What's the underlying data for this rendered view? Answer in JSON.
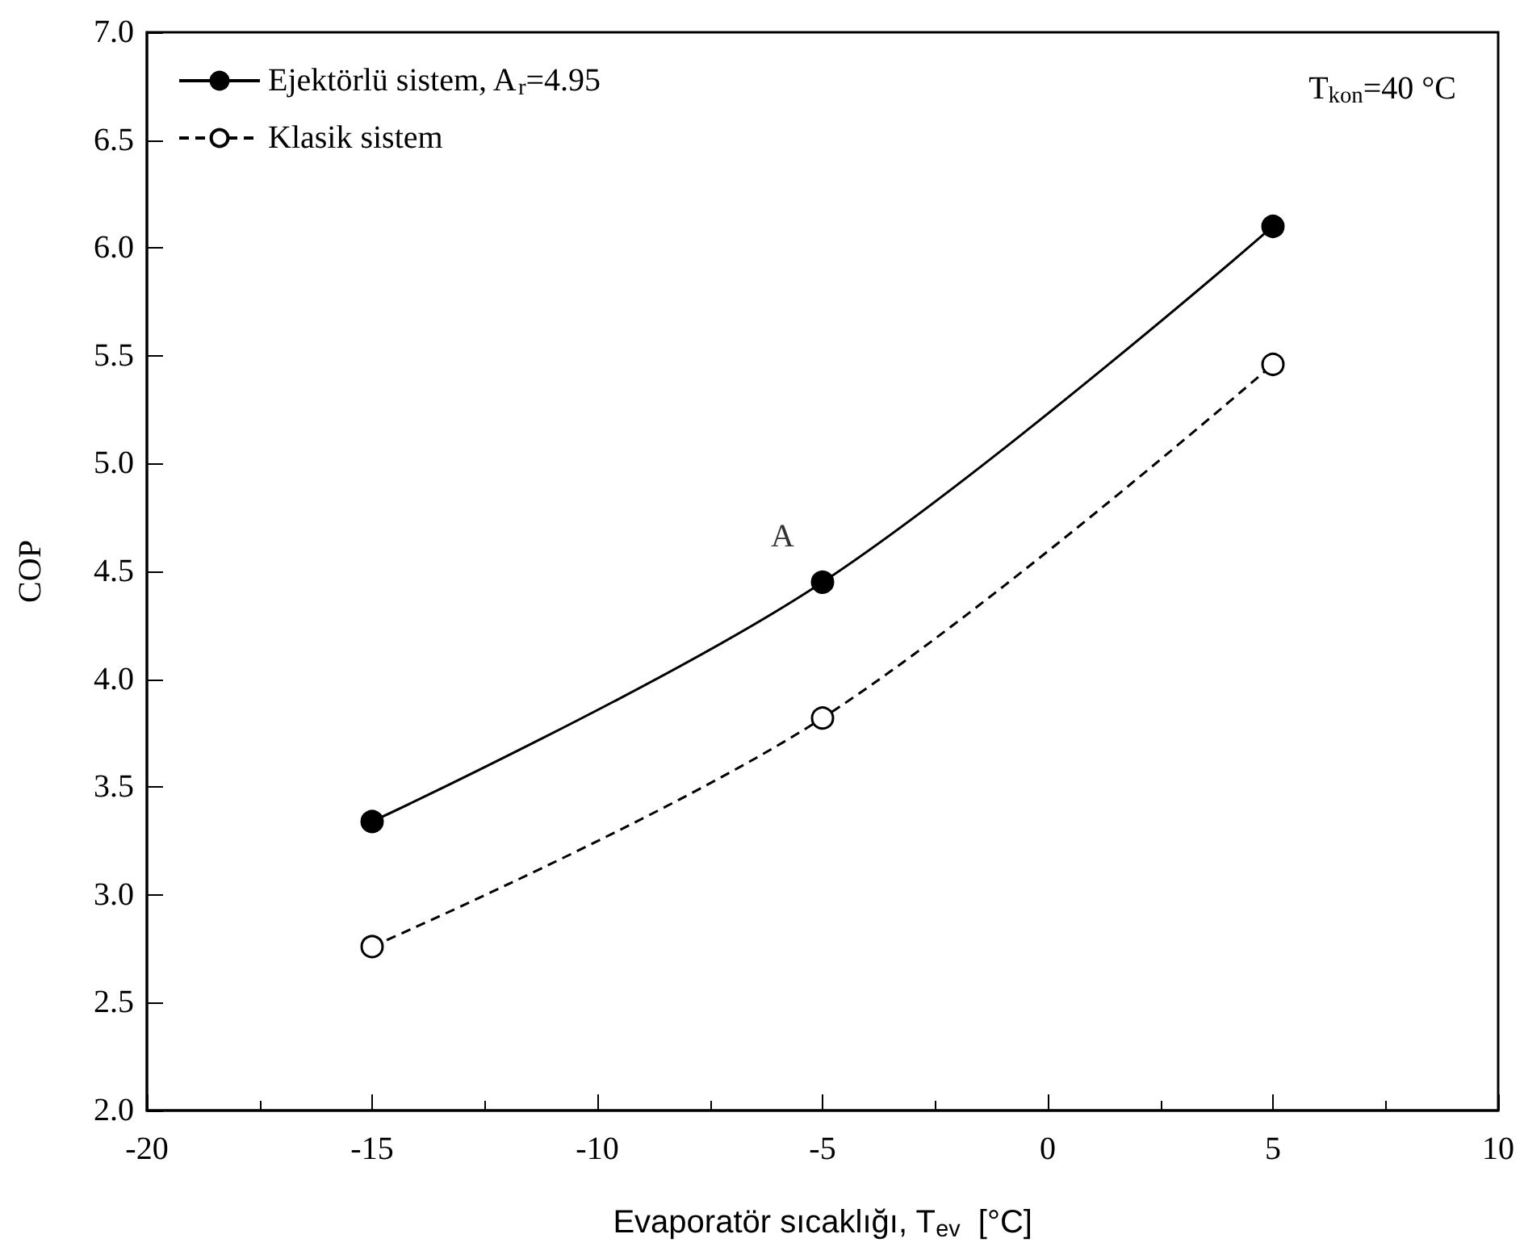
{
  "chart_data": {
    "type": "line",
    "xlabel": "Evaporatör sıcaklığı, T$_{ev}$  [°C]",
    "ylabel": "COP",
    "x": [
      -15,
      -5,
      5
    ],
    "series": [
      {
        "name": "Ejektörlü sistem, A$_{r}$=4.95",
        "color": "#000000",
        "values": [
          3.34,
          4.45,
          6.1
        ],
        "line_style": "solid"
      },
      {
        "name": "Klasik sistem",
        "color": "#000000",
        "values": [
          2.76,
          3.82,
          5.46
        ],
        "line_style": "dashed"
      }
    ],
    "xlim": [
      -20,
      10
    ],
    "xticks": [
      -20,
      -15,
      -10,
      -5,
      0,
      5,
      10
    ],
    "ylim": [
      2.0,
      7.0
    ],
    "yticks": [
      {
        "value": 2,
        "label": "2.0"
      },
      {
        "value": 2.5,
        "label": "2.5"
      },
      {
        "value": 3,
        "label": "3.0"
      },
      {
        "value": 3.5,
        "label": "3.5"
      },
      {
        "value": 4,
        "label": "4.0"
      },
      {
        "value": 4.5,
        "label": "4.5"
      },
      {
        "value": 5,
        "label": "5.0"
      },
      {
        "value": 5.5,
        "label": "5.5"
      },
      {
        "value": 6,
        "label": "6.0"
      },
      {
        "value": 6.5,
        "label": "6.5"
      },
      {
        "value": 7,
        "label": "7.0"
      }
    ],
    "annotations": [
      {
        "text": "A",
        "x": -5,
        "y": 4.45
      },
      "T$_{kon}$=40 °C"
    ],
    "legend": "top left",
    "grid": false,
    "marker": "circle"
  }
}
